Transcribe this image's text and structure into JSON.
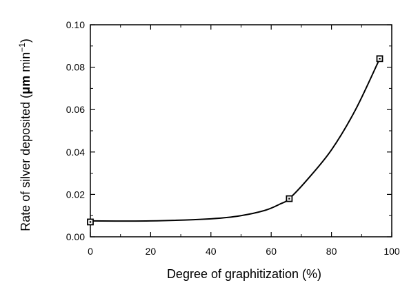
{
  "chart_data": {
    "type": "line",
    "title": "",
    "xlabel": "Degree of graphitization (%)",
    "ylabel": "Rate of silver deposited (μm min⁻¹)",
    "ylabel_parts": {
      "main": "Rate of silver deposited (",
      "unit_mu": "μ",
      "unit_m": "m",
      "unit_min": " min",
      "unit_exp": "−1",
      "close": ")"
    },
    "xlim": [
      0,
      100
    ],
    "ylim": [
      0.0,
      0.1
    ],
    "xticks": [
      0,
      20,
      40,
      60,
      80,
      100
    ],
    "xtick_labels": [
      "0",
      "20",
      "40",
      "60",
      "80",
      "100"
    ],
    "yticks": [
      0.0,
      0.02,
      0.04,
      0.06,
      0.08,
      0.1
    ],
    "ytick_labels": [
      "0.00",
      "0.02",
      "0.04",
      "0.06",
      "0.08",
      "0.10"
    ],
    "grid": false,
    "series": [
      {
        "markers": "open-square",
        "points": [
          {
            "x": 0,
            "y": 0.007
          },
          {
            "x": 66,
            "y": 0.018
          },
          {
            "x": 96,
            "y": 0.084
          }
        ],
        "curve": [
          {
            "x": 0,
            "y": 0.0075
          },
          {
            "x": 20,
            "y": 0.0075
          },
          {
            "x": 40,
            "y": 0.0085
          },
          {
            "x": 50,
            "y": 0.01
          },
          {
            "x": 58,
            "y": 0.0125
          },
          {
            "x": 63,
            "y": 0.0155
          },
          {
            "x": 66,
            "y": 0.018
          },
          {
            "x": 72,
            "y": 0.027
          },
          {
            "x": 80,
            "y": 0.041
          },
          {
            "x": 88,
            "y": 0.06
          },
          {
            "x": 96,
            "y": 0.084
          }
        ]
      }
    ]
  }
}
